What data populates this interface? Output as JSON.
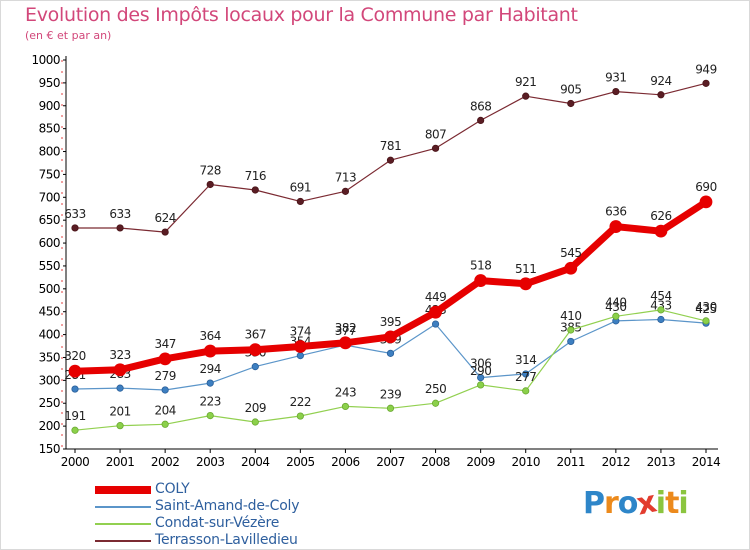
{
  "header": {
    "title": "Evolution des Impôts locaux pour la Commune par Habitant",
    "subtitle": "(en € et par an)"
  },
  "brand": {
    "text": "Proxiti",
    "letters": [
      {
        "char": "P",
        "color": "#2e86c9"
      },
      {
        "char": "r",
        "color": "#ec8a1c"
      },
      {
        "char": "o",
        "color": "#2e86c9"
      },
      {
        "char": "x",
        "color": "#e23c2e"
      },
      {
        "char": "i",
        "color": "#8bc53f"
      },
      {
        "char": "t",
        "color": "#ec8a1c"
      },
      {
        "char": "i",
        "color": "#8bc53f"
      }
    ]
  },
  "chart_data": {
    "type": "line",
    "title": "Evolution des Impôts locaux pour la Commune par Habitant",
    "subtitle": "(en € et par an)",
    "x": [
      "2000",
      "2001",
      "2002",
      "2003",
      "2004",
      "2005",
      "2006",
      "2007",
      "2008",
      "2009",
      "2010",
      "2011",
      "2012",
      "2013",
      "2014"
    ],
    "ylim": [
      150,
      1000
    ],
    "yticks": [
      150,
      200,
      250,
      300,
      350,
      400,
      450,
      500,
      550,
      600,
      650,
      700,
      750,
      800,
      850,
      900,
      950,
      1000
    ],
    "grid": false,
    "legend_position": "bottom-left",
    "series": [
      {
        "name": "Terrasson-Lavilledieu",
        "color": "#7b2a32",
        "values": [
          633,
          633,
          624,
          728,
          716,
          691,
          713,
          781,
          807,
          868,
          921,
          905,
          931,
          924,
          949
        ],
        "labels": [
          "633",
          "633",
          "624",
          "728",
          "716",
          "691",
          "713",
          "781",
          "807",
          "868",
          "921",
          "905",
          "931",
          "924",
          "949"
        ]
      },
      {
        "name": "Saint-Amand-de-Coly",
        "color": "#5b95c9",
        "values": [
          281,
          283,
          279,
          294,
          330,
          354,
          377,
          359,
          423,
          306,
          314,
          385,
          430,
          433,
          425
        ],
        "labels": [
          "281",
          "283",
          "279",
          "294",
          "330",
          "354",
          "377",
          "359",
          "423",
          "306",
          "314",
          "385",
          "430",
          "433",
          "425"
        ]
      },
      {
        "name": "Condat-sur-Vézère",
        "color": "#92d050",
        "values": [
          191,
          201,
          204,
          223,
          209,
          222,
          243,
          239,
          250,
          290,
          277,
          410,
          440,
          454,
          430
        ],
        "labels": [
          "191",
          "201",
          "204",
          "223",
          "209",
          "222",
          "243",
          "239",
          "250",
          "290",
          "277",
          "410",
          "440",
          "454",
          "430"
        ]
      },
      {
        "name": "COLY",
        "color": "#e60000",
        "values": [
          320,
          323,
          347,
          364,
          367,
          374,
          382,
          395,
          449,
          518,
          511,
          545,
          636,
          626,
          690
        ],
        "labels": [
          "320",
          "323",
          "347",
          "364",
          "367",
          "374",
          "382",
          "395",
          "449",
          "518",
          "511",
          "545",
          "636",
          "626",
          "690"
        ]
      }
    ]
  },
  "legend": [
    {
      "label": "COLY",
      "color": "#e60000",
      "thick": true
    },
    {
      "label": "Saint-Amand-de-Coly",
      "color": "#5b95c9",
      "thick": false
    },
    {
      "label": "Condat-sur-Vézère",
      "color": "#92d050",
      "thick": false
    },
    {
      "label": "Terrasson-Lavilledieu",
      "color": "#7b2a32",
      "thick": false
    }
  ]
}
